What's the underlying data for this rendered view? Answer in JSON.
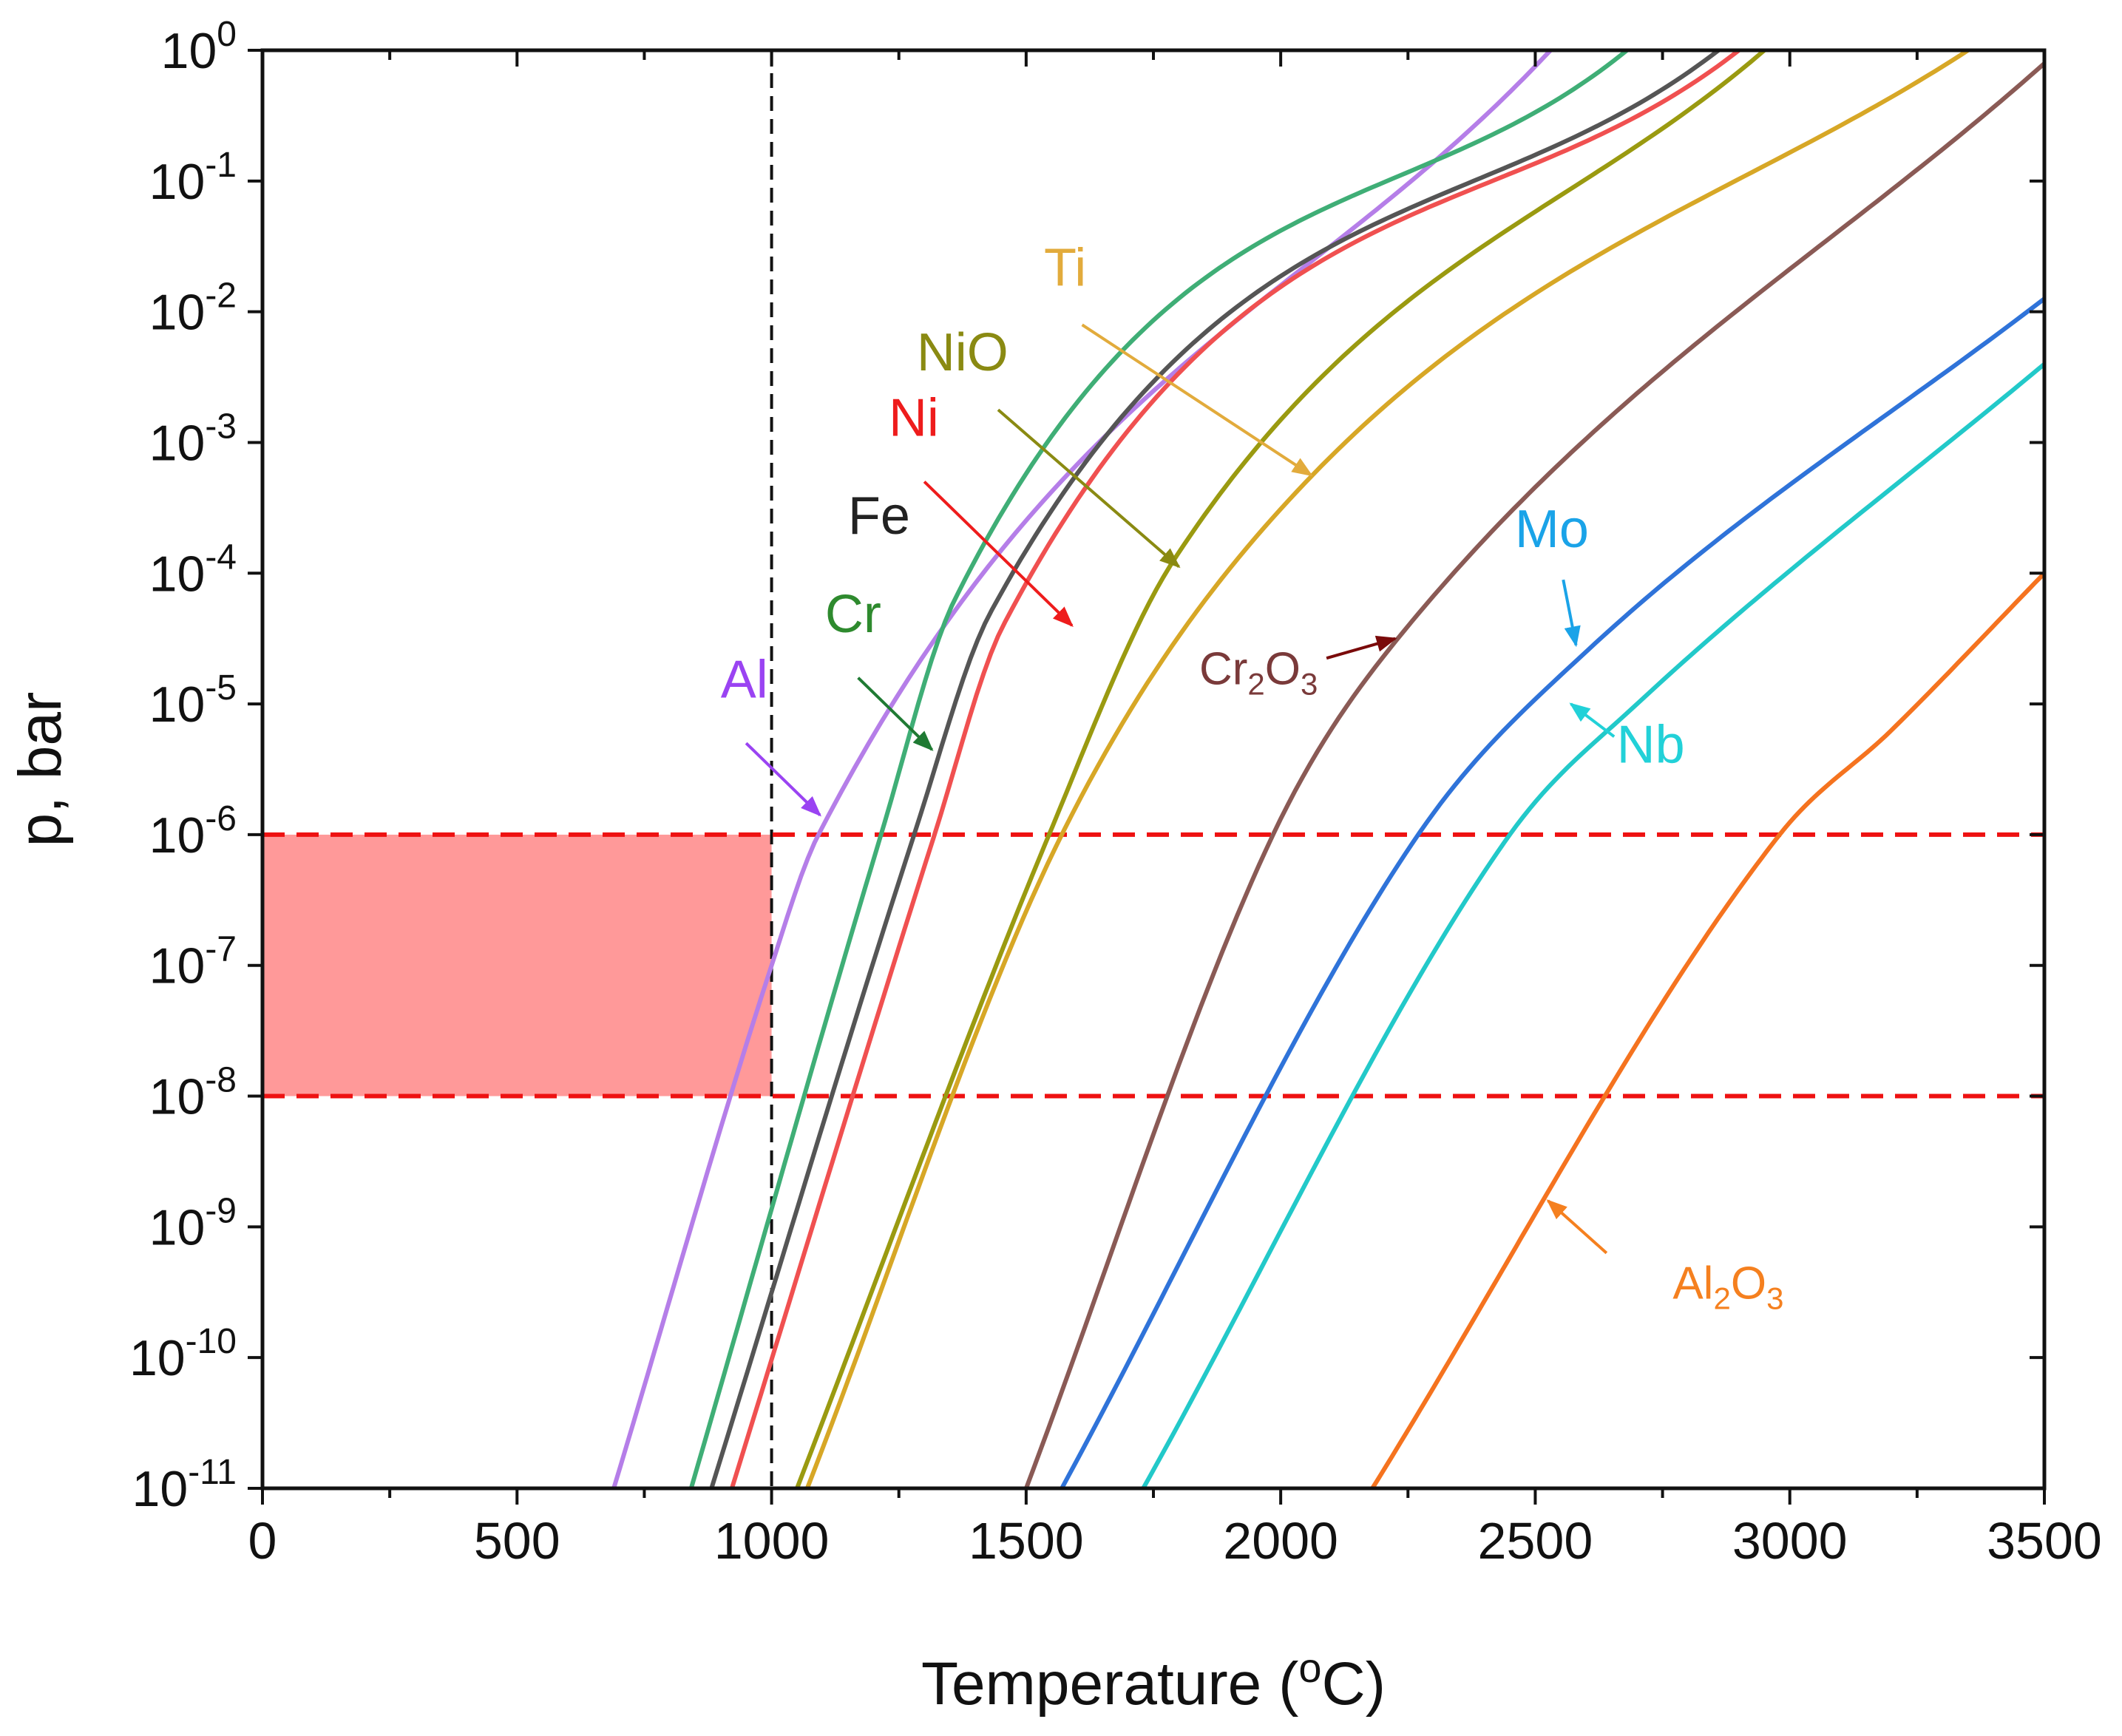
{
  "chart_data": {
    "type": "line",
    "xlabel": "Temperature",
    "xlabel_unit_open": "(",
    "xlabel_unit_sup": "o",
    "xlabel_unit": "C)",
    "ylabel": "p, bar",
    "xlim": [
      0,
      3500
    ],
    "ylim_log10": [
      -11,
      0
    ],
    "x_ticks": [
      "0",
      "500",
      "1000",
      "1500",
      "2000",
      "2500",
      "3000",
      "3500"
    ],
    "y_ticks": [
      {
        "base": "10",
        "exp": "0"
      },
      {
        "base": "10",
        "exp": "-1"
      },
      {
        "base": "10",
        "exp": "-2"
      },
      {
        "base": "10",
        "exp": "-3"
      },
      {
        "base": "10",
        "exp": "-4"
      },
      {
        "base": "10",
        "exp": "-5"
      },
      {
        "base": "10",
        "exp": "-6"
      },
      {
        "base": "10",
        "exp": "-7"
      },
      {
        "base": "10",
        "exp": "-8"
      },
      {
        "base": "10",
        "exp": "-9"
      },
      {
        "base": "10",
        "exp": "-10"
      },
      {
        "base": "10",
        "exp": "-11"
      }
    ],
    "reference_lines": {
      "vertical_x": 1000,
      "horizontal_p": [
        1e-06,
        1e-08
      ],
      "shaded_region": {
        "x": [
          0,
          1000
        ],
        "p": [
          1e-08,
          1e-06
        ]
      }
    },
    "series": [
      {
        "name": "Al",
        "color": "#b57ee8",
        "x": [
          690,
          1000,
          1092,
          2530
        ],
        "log10p": [
          -11,
          -7.0,
          -6.0,
          0
        ]
      },
      {
        "name": "Cr",
        "color": "#3fae76",
        "x": [
          842,
          1215,
          1360,
          2680
        ],
        "log10p": [
          -11,
          -6.0,
          -4.2,
          0
        ]
      },
      {
        "name": "Fe",
        "color": "#555555",
        "x": [
          882,
          1280,
          1430,
          2860
        ],
        "log10p": [
          -11,
          -6.0,
          -4.3,
          0
        ]
      },
      {
        "name": "Ni",
        "color": "#f05050",
        "x": [
          922,
          1320,
          1455,
          2900
        ],
        "log10p": [
          -11,
          -6.0,
          -4.4,
          0
        ]
      },
      {
        "name": "NiO",
        "color": "#9a9a10",
        "x": [
          1050,
          1545,
          1790,
          2950
        ],
        "log10p": [
          -11,
          -6.0,
          -3.9,
          0
        ]
      },
      {
        "name": "Ti",
        "color": "#d7a726",
        "x": [
          1070,
          1570,
          2050,
          3350
        ],
        "log10p": [
          -11,
          -6.0,
          -3.3,
          0
        ]
      },
      {
        "name": "Cr2O3",
        "color": "#8a5a55",
        "x": [
          1500,
          1985,
          2230,
          3500
        ],
        "log10p": [
          -11,
          -6.0,
          -4.5,
          -0.1
        ]
      },
      {
        "name": "Mo",
        "color": "#2f73d9",
        "x": [
          1570,
          2270,
          2600,
          3500
        ],
        "log10p": [
          -11,
          -6.0,
          -4.6,
          -1.9
        ]
      },
      {
        "name": "Nb",
        "color": "#22c9c9",
        "x": [
          1730,
          2450,
          2700,
          3500
        ],
        "log10p": [
          -11,
          -6.0,
          -5.0,
          -2.4
        ]
      },
      {
        "name": "Al2O3",
        "color": "#f5731f",
        "x": [
          2180,
          2980,
          3200,
          3500
        ],
        "log10p": [
          -11,
          -6.0,
          -5.2,
          -4.0
        ]
      }
    ],
    "labels": [
      {
        "text": "Al",
        "sub": [],
        "color": "#9a43f2",
        "arrow_color": "#9a43f2",
        "pos": [
          900,
          -4.95
        ],
        "arrow": [
          [
            950,
            -5.3
          ],
          [
            1095,
            -5.85
          ]
        ]
      },
      {
        "text": "Cr",
        "sub": [],
        "color": "#2e8a2e",
        "arrow_color": "#1f7a33",
        "pos": [
          1105,
          -4.45
        ],
        "arrow": [
          [
            1170,
            -4.8
          ],
          [
            1315,
            -5.35
          ]
        ]
      },
      {
        "text": "Fe",
        "sub": [],
        "color": "#222222",
        "arrow_color": "",
        "pos": [
          1150,
          -3.7
        ],
        "arrow": []
      },
      {
        "text": "Ni",
        "sub": [],
        "color": "#ee1c1c",
        "arrow_color": "#ee1c1c",
        "pos": [
          1230,
          -2.95
        ],
        "arrow": [
          [
            1300,
            -3.3
          ],
          [
            1590,
            -4.4
          ]
        ]
      },
      {
        "text": "NiO",
        "sub": [],
        "color": "#8a8a12",
        "arrow_color": "#8a8a12",
        "pos": [
          1285,
          -2.45
        ],
        "arrow": [
          [
            1445,
            -2.75
          ],
          [
            1800,
            -3.95
          ]
        ]
      },
      {
        "text": "Ti",
        "sub": [],
        "color": "#e2ab3c",
        "arrow_color": "#e2ab3c",
        "pos": [
          1535,
          -1.8
        ],
        "arrow": [
          [
            1610,
            -2.1
          ],
          [
            2060,
            -3.25
          ]
        ]
      },
      {
        "text": "Cr",
        "sub": [
          "2",
          "O",
          "3"
        ],
        "color": "#7a3a3a",
        "arrow_color": "#7a0a0a",
        "pos": [
          1840,
          -4.85
        ],
        "arrow": [
          [
            2090,
            -4.65
          ],
          [
            2225,
            -4.5
          ]
        ]
      },
      {
        "text": "Mo",
        "sub": [],
        "color": "#1aa3e8",
        "arrow_color": "#1aa3e8",
        "pos": [
          2460,
          -3.8
        ],
        "arrow": [
          [
            2555,
            -4.05
          ],
          [
            2580,
            -4.55
          ]
        ]
      },
      {
        "text": "Nb",
        "sub": [],
        "color": "#22d1d8",
        "arrow_color": "#22d1d8",
        "pos": [
          2660,
          -5.45
        ],
        "arrow": [
          [
            2655,
            -5.25
          ],
          [
            2570,
            -5.0
          ]
        ]
      },
      {
        "text": "Al",
        "sub": [
          "2",
          "O",
          "3"
        ],
        "color": "#f5801f",
        "arrow_color": "#f5801f",
        "pos": [
          2770,
          -9.55
        ],
        "arrow": [
          [
            2640,
            -9.2
          ],
          [
            2525,
            -8.8
          ]
        ]
      }
    ]
  }
}
